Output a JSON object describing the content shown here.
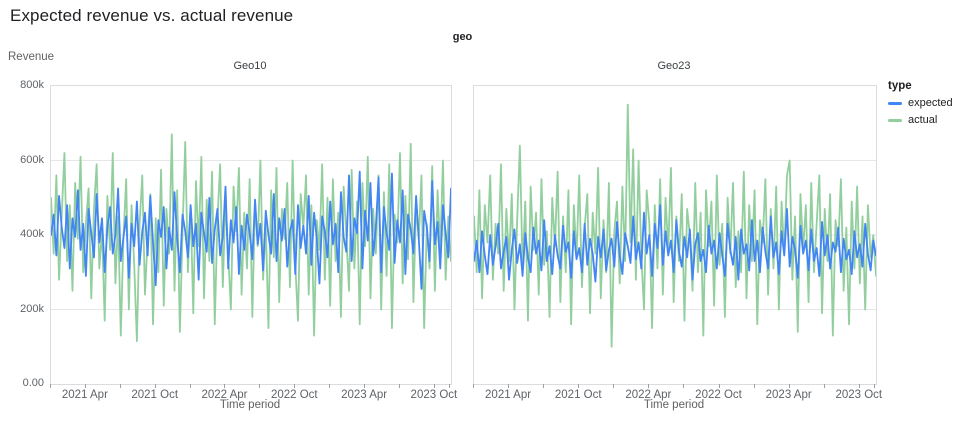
{
  "page": {
    "title": "Expected revenue vs. actual revenue"
  },
  "facet_header": {
    "label": "geo"
  },
  "legend": {
    "title": "type",
    "items": [
      {
        "label": "expected",
        "color": "#4285f4"
      },
      {
        "label": "actual",
        "color": "#93cf9e"
      }
    ]
  },
  "colors": {
    "border": "#dadce0",
    "grid": "#e6e6e6",
    "tick": "#9aa0a6"
  },
  "chart_data": {
    "type": "line",
    "title": "Expected revenue vs. actual revenue",
    "xlabel": "Time period",
    "ylabel": "Revenue",
    "facet_field": "geo",
    "ylim_k": [
      0,
      800
    ],
    "y_ticks": [
      {
        "label": "800k",
        "value_k": 800
      },
      {
        "label": "600k",
        "value_k": 600
      },
      {
        "label": "400k",
        "value_k": 400
      },
      {
        "label": "200k",
        "value_k": 200
      },
      {
        "label": "0.00",
        "value_k": 0
      }
    ],
    "y_gridlines_k": [
      200,
      400,
      600
    ],
    "x_unit": "week index, Jan 2021 - Dec 2023",
    "x_domain_weeks": 149,
    "x_major_ticks": [
      {
        "label": "2021 Apr",
        "week": 13
      },
      {
        "label": "2021 Oct",
        "week": 39
      },
      {
        "label": "2022 Apr",
        "week": 65
      },
      {
        "label": "2022 Oct",
        "week": 91
      },
      {
        "label": "2023 Apr",
        "week": 117
      },
      {
        "label": "2023 Oct",
        "week": 143
      }
    ],
    "x_minor_tick_weeks": [
      0,
      26,
      52,
      78,
      104,
      130,
      149
    ],
    "values_unit": "thousands",
    "facets": [
      {
        "label": "Geo10",
        "series": [
          {
            "name": "expected",
            "color": "#4285f4",
            "values_k": [
              400,
              455,
              345,
              505,
              420,
              365,
              480,
              310,
              445,
              395,
              520,
              360,
              430,
              290,
              470,
              405,
              340,
              510,
              380,
              445,
              300,
              420,
              475,
              350,
              400,
              525,
              330,
              395,
              450,
              285,
              430,
              370,
              490,
              320,
              410,
              460,
              345,
              505,
              380,
              265,
              440,
              395,
              475,
              310,
              420,
              360,
              515,
              390,
              300,
              455,
              410,
              340,
              480,
              370,
              430,
              280,
              460,
              405,
              355,
              500,
              325,
              415,
              470,
              345,
              395,
              530,
              310,
              440,
              380,
              475,
              295,
              425,
              360,
              455,
              405,
              335,
              495,
              375,
              430,
              305,
              465,
              400,
              350,
              510,
              330,
              445,
              385,
              470,
              315,
              410,
              440,
              295,
              480,
              365,
              425,
              350,
              505,
              320,
              460,
              390,
              270,
              450,
              410,
              340,
              490,
              375,
              430,
              300,
              515,
              395,
              355,
              560,
              330,
              445,
              405,
              570,
              310,
              465,
              385,
              540,
              345,
              420,
              555,
              300,
              475,
              405,
              360,
              565,
              325,
              440,
              380,
              520,
              295,
              455,
              415,
              350,
              505,
              390,
              255,
              465,
              420,
              330,
              545,
              375,
              435,
              310,
              480,
              405,
              340,
              525
            ]
          },
          {
            "name": "actual",
            "color": "#93cf9e",
            "values_k": [
              500,
              350,
              560,
              280,
              455,
              620,
              330,
              480,
              250,
              540,
              390,
              610,
              300,
              430,
              525,
              230,
              470,
              590,
              310,
              415,
              170,
              505,
              360,
              620,
              270,
              450,
              130,
              395,
              550,
              200,
              480,
              320,
              115,
              430,
              560,
              240,
              390,
              510,
              160,
              445,
              300,
              575,
              210,
              470,
              350,
              670,
              250,
              520,
              140,
              410,
              650,
              300,
              480,
              190,
              545,
              370,
              610,
              230,
              495,
              330,
              570,
              160,
              440,
              590,
              260,
              500,
              350,
              200,
              530,
              410,
              580,
              240,
              460,
              310,
              550,
              180,
              490,
              370,
              600,
              280,
              430,
              150,
              520,
              340,
              580,
              220,
              470,
              390,
              540,
              260,
              600,
              320,
              170,
              510,
              420,
              560,
              240,
              480,
              130,
              440,
              360,
              590,
              280,
              500,
              210,
              550,
              330,
              460,
              180,
              530,
              400,
              250,
              575,
              310,
              490,
              160,
              540,
              370,
              610,
              230,
              470,
              350,
              560,
              200,
              515,
              290,
              590,
              150,
              455,
              380,
              620,
              270,
              505,
              335,
              645,
              220,
              480,
              390,
              560,
              150,
              430,
              310,
              585,
              250,
              520,
              360,
              600,
              280,
              450,
              330
            ]
          }
        ]
      },
      {
        "label": "Geo23",
        "series": [
          {
            "name": "expected",
            "color": "#4285f4",
            "values_k": [
              330,
              385,
              300,
              410,
              345,
              295,
              400,
              320,
              370,
              430,
              310,
              355,
              395,
              280,
              360,
              415,
              325,
              375,
              290,
              405,
              340,
              300,
              420,
              350,
              385,
              305,
              440,
              330,
              370,
              295,
              400,
              345,
              310,
              425,
              355,
              380,
              285,
              410,
              335,
              365,
              300,
              430,
              320,
              390,
              350,
              275,
              395,
              340,
              415,
              305,
              360,
              390,
              315,
              435,
              345,
              295,
              405,
              370,
              325,
              450,
              335,
              380,
              310,
              460,
              350,
              400,
              290,
              430,
              365,
              480,
              320,
              410,
              345,
              385,
              300,
              440,
              355,
              315,
              395,
              340,
              415,
              280,
              375,
              405,
              330,
              360,
              300,
              425,
              350,
              385,
              310,
              405,
              345,
              290,
              430,
              360,
              320,
              395,
              280,
              415,
              350,
              375,
              305,
              440,
              330,
              385,
              300,
              420,
              355,
              310,
              450,
              340,
              380,
              295,
              410,
              345,
              470,
              315,
              395,
              360,
              285,
              425,
              350,
              385,
              305,
              415,
              330,
              365,
              290,
              435,
              345,
              400,
              310,
              380,
              355,
              420,
              300,
              390,
              335,
              360,
              295,
              410,
              340,
              375,
              315,
              430,
              350,
              305,
              385,
              345
            ]
          },
          {
            "name": "actual",
            "color": "#93cf9e",
            "values_k": [
              450,
              300,
              520,
              230,
              480,
              380,
              560,
              280,
              430,
              350,
              590,
              250,
              470,
              330,
              510,
              200,
              440,
              640,
              310,
              490,
              170,
              530,
              360,
              460,
              240,
              550,
              320,
              410,
              180,
              500,
              370,
              570,
              220,
              450,
              300,
              520,
              160,
              480,
              340,
              560,
              260,
              420,
              510,
              190,
              460,
              350,
              580,
              230,
              440,
              300,
              540,
              100,
              410,
              490,
              270,
              530,
              330,
              750,
              380,
              630,
              280,
              600,
              350,
              200,
              520,
              430,
              150,
              480,
              310,
              550,
              240,
              500,
              360,
              580,
              220,
              450,
              330,
              510,
              170,
              470,
              400,
              250,
              540,
              300,
              460,
              130,
              520,
              370,
              490,
              210,
              560,
              320,
              430,
              180,
              500,
              350,
              540,
              260,
              410,
              300,
              570,
              230,
              480,
              330,
              520,
              160,
              440,
              380,
              550,
              240,
              470,
              310,
              530,
              200,
              490,
              350,
              560,
              600,
              280,
              450,
              140,
              510,
              360,
              480,
              220,
              540,
              300,
              430,
              560,
              190,
              470,
              330,
              510,
              130,
              440,
              370,
              550,
              250,
              420,
              160,
              490,
              310,
              530,
              270,
              450,
              200,
              480,
              340,
              400,
              290
            ]
          }
        ]
      }
    ]
  },
  "layout_note": "two facet panels sharing one y axis"
}
